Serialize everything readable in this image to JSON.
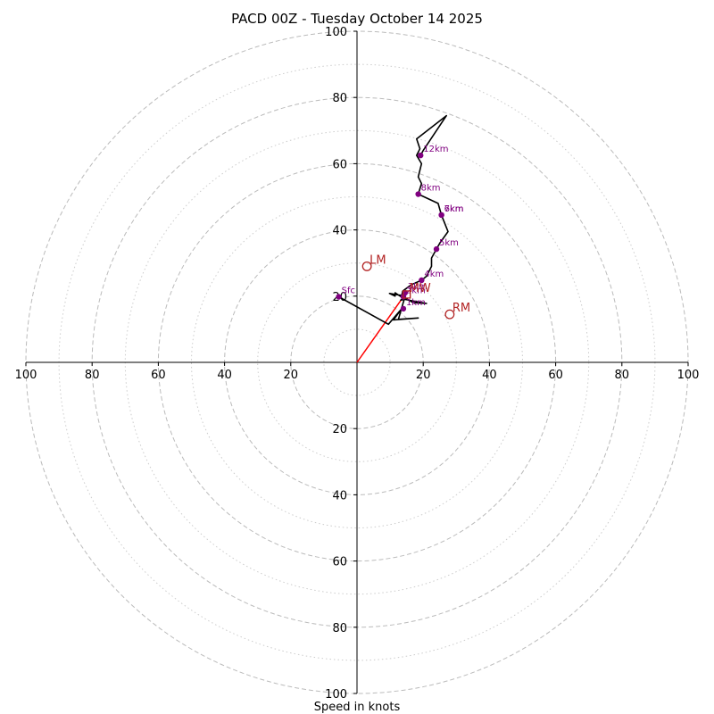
{
  "chart_data": {
    "type": "hodograph",
    "title": "PACD 00Z - Tuesday October 14 2025",
    "xlabel": "Speed in knots",
    "units": "knots",
    "max_speed": 100,
    "ring_major": [
      20,
      40,
      60,
      80,
      100
    ],
    "ring_minor": [
      10,
      30,
      50,
      70,
      90
    ],
    "ticks": {
      "x_left": [
        "100",
        "80",
        "60",
        "40",
        "20"
      ],
      "x_right": [
        "20",
        "40",
        "60",
        "80",
        "100"
      ],
      "y_up": [
        "20",
        "40",
        "60",
        "80",
        "100"
      ],
      "y_down": [
        "20",
        "40",
        "60",
        "80",
        "100"
      ]
    },
    "colors": {
      "trace": "#000000",
      "height_marker": "#800080",
      "storm": "#b22222",
      "shear": "#ff0000",
      "grid": "#bbbbbb",
      "axes": "#000000"
    },
    "trace": [
      [
        -5.5,
        19.8
      ],
      [
        9.5,
        11.5
      ],
      [
        13.5,
        16.2
      ],
      [
        11.0,
        12.8
      ],
      [
        18.5,
        13.4
      ],
      [
        12.5,
        13.0
      ],
      [
        13.5,
        16.5
      ],
      [
        14.5,
        19.8
      ],
      [
        13.2,
        18.8
      ],
      [
        15.0,
        19.2
      ],
      [
        17.0,
        18.0
      ],
      [
        21.0,
        17.8
      ],
      [
        14.5,
        19.0
      ],
      [
        11.5,
        21.0
      ],
      [
        11.5,
        20.0
      ],
      [
        9.8,
        20.8
      ],
      [
        13.5,
        20.2
      ],
      [
        13.8,
        21.5
      ],
      [
        16.5,
        23.5
      ],
      [
        19.5,
        24.8
      ],
      [
        21.0,
        26.0
      ],
      [
        22.5,
        29.0
      ],
      [
        22.5,
        31.5
      ],
      [
        24.0,
        34.2
      ],
      [
        25.0,
        36.0
      ],
      [
        27.5,
        39.5
      ],
      [
        25.5,
        44.5
      ],
      [
        24.5,
        48.0
      ],
      [
        18.5,
        50.8
      ],
      [
        19.5,
        54.0
      ],
      [
        18.5,
        56.0
      ],
      [
        19.5,
        60.0
      ],
      [
        18.0,
        62.5
      ],
      [
        19.0,
        64.5
      ],
      [
        18.0,
        67.5
      ],
      [
        27.0,
        74.5
      ],
      [
        20.0,
        64.0
      ],
      [
        19.2,
        62.5
      ]
    ],
    "height_markers": [
      {
        "label": "Sfc",
        "u": -5.5,
        "v": 19.8
      },
      {
        "label": "1km",
        "u": 14.0,
        "v": 16.2
      },
      {
        "label": "2km",
        "u": 14.0,
        "v": 19.8
      },
      {
        "label": "3km",
        "u": 14.5,
        "v": 21.0
      },
      {
        "label": "4km",
        "u": 19.5,
        "v": 24.8
      },
      {
        "label": "5km",
        "u": 24.0,
        "v": 34.2
      },
      {
        "label": "6km",
        "u": 25.5,
        "v": 44.5
      },
      {
        "label": "7km",
        "u": 25.5,
        "v": 44.5
      },
      {
        "label": "8km",
        "u": 18.5,
        "v": 50.8
      },
      {
        "label": "12km",
        "u": 19.2,
        "v": 62.5
      }
    ],
    "storm_motion": [
      {
        "label": "LM",
        "u": 3.0,
        "v": 29.0
      },
      {
        "label": "RM",
        "u": 28.0,
        "v": 14.5
      },
      {
        "label": "MW",
        "u": 15.0,
        "v": 20.5
      }
    ],
    "shear_vector": {
      "from": [
        0,
        0
      ],
      "to": [
        14.5,
        20.5
      ]
    }
  }
}
